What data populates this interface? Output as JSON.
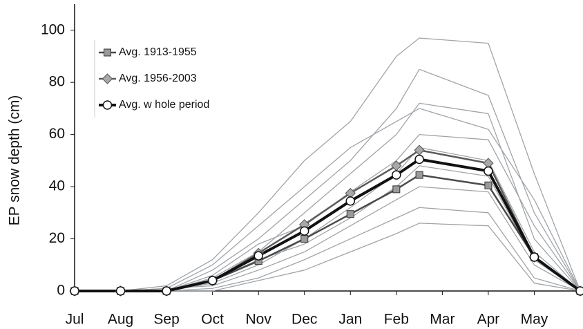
{
  "chart_data": {
    "type": "line",
    "y_label": "EP snow depth (cm)",
    "xlim": [
      0,
      11
    ],
    "ylim": [
      0,
      110
    ],
    "xticks": [
      {
        "value": 0,
        "label": "Jul"
      },
      {
        "value": 1,
        "label": "Aug"
      },
      {
        "value": 2,
        "label": "Sep"
      },
      {
        "value": 3,
        "label": "Oct"
      },
      {
        "value": 4,
        "label": "Nov"
      },
      {
        "value": 5,
        "label": "Dec"
      },
      {
        "value": 6,
        "label": "Jan"
      },
      {
        "value": 7,
        "label": "Feb"
      },
      {
        "value": 8,
        "label": "Mar"
      },
      {
        "value": 9,
        "label": "Apr"
      },
      {
        "value": 10,
        "label": "May"
      }
    ],
    "yticks": [
      0,
      20,
      40,
      60,
      80,
      100
    ],
    "x": [
      0,
      1,
      2,
      3,
      4,
      5,
      6,
      7,
      7.5,
      9,
      10,
      11
    ],
    "background_series": {
      "color": "#a0a4a8",
      "values": [
        [
          0,
          0,
          0,
          8,
          20,
          35,
          50,
          70,
          85,
          75,
          30,
          0
        ],
        [
          0,
          0,
          1,
          2,
          8,
          15,
          25,
          35,
          40,
          38,
          10,
          0
        ],
        [
          0,
          0,
          0,
          5,
          15,
          30,
          45,
          60,
          72,
          68,
          20,
          0
        ],
        [
          0,
          0,
          0,
          1,
          5,
          12,
          20,
          28,
          32,
          30,
          5,
          0
        ],
        [
          0,
          0,
          2,
          12,
          30,
          50,
          65,
          90,
          97,
          95,
          45,
          0
        ],
        [
          0,
          0,
          0,
          3,
          10,
          20,
          32,
          45,
          55,
          50,
          15,
          0
        ],
        [
          0,
          0,
          0,
          6,
          18,
          25,
          38,
          50,
          60,
          58,
          25,
          0
        ],
        [
          0,
          0,
          0,
          0,
          4,
          8,
          15,
          22,
          26,
          25,
          3,
          0
        ],
        [
          0,
          0,
          1,
          10,
          25,
          40,
          55,
          65,
          70,
          62,
          35,
          0
        ],
        [
          0,
          0,
          0,
          4,
          12,
          18,
          28,
          40,
          48,
          44,
          12,
          0
        ]
      ]
    },
    "series": [
      {
        "name": "Avg. 1913-1955",
        "color": "#4a4a4a",
        "marker": "square",
        "marker_color": "#9a9a9a",
        "values": [
          0,
          0,
          0,
          4,
          11.5,
          20,
          29.5,
          39,
          44.5,
          40.5,
          13,
          0
        ]
      },
      {
        "name": "Avg. 1956-2003",
        "color": "#5a5a5a",
        "marker": "diamond",
        "marker_color": "#a8a8a8",
        "values": [
          0,
          0,
          0,
          4,
          14.5,
          25.5,
          37.5,
          48,
          54,
          49,
          13,
          0
        ]
      },
      {
        "name": "Avg. w hole period",
        "color": "#111111",
        "marker": "circle",
        "marker_color": "#ffffff",
        "values": [
          0,
          0,
          0,
          4,
          13.5,
          23,
          34.5,
          44.5,
          50.5,
          46,
          13,
          0
        ]
      }
    ]
  }
}
